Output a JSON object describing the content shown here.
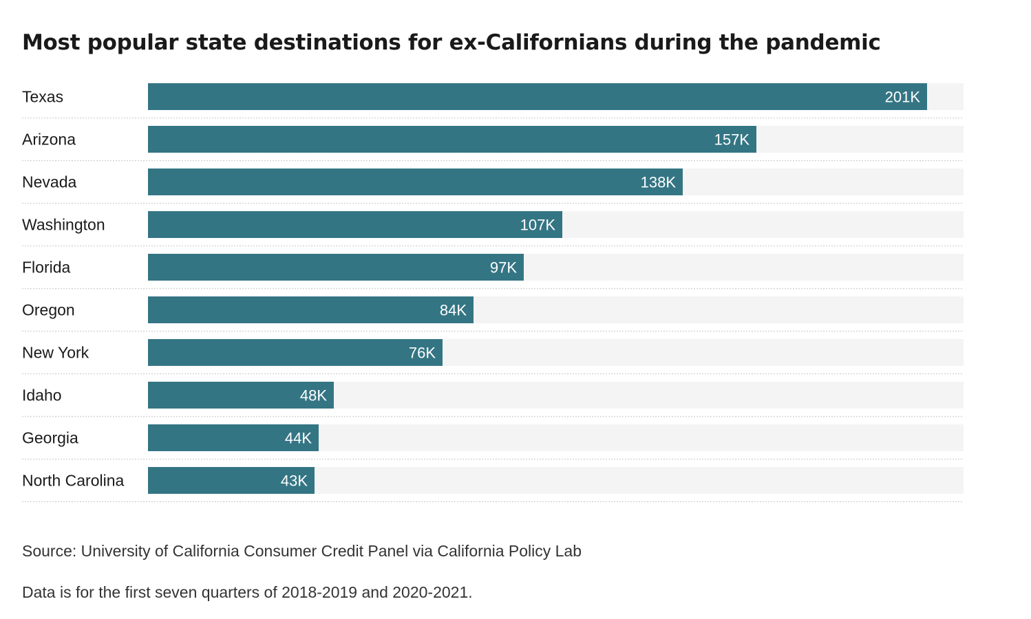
{
  "title": "Most popular state destinations for ex-Californians during the pandemic",
  "source": "Source: University of California Consumer Credit Panel via California Policy Lab",
  "note": "Data is for the first seven quarters of 2018-2019 and 2020-2021.",
  "colors": {
    "bar": "#347584",
    "track": "#f4f4f4",
    "divider": "#cfcfcf"
  },
  "chart_data": {
    "type": "bar",
    "orientation": "horizontal",
    "title": "Most popular state destinations for ex-Californians during the pandemic",
    "categories": [
      "Texas",
      "Arizona",
      "Nevada",
      "Washington",
      "Florida",
      "Oregon",
      "New York",
      "Idaho",
      "Georgia",
      "North Carolina"
    ],
    "values": [
      201000,
      157000,
      138000,
      107000,
      97000,
      84000,
      76000,
      48000,
      44000,
      43000
    ],
    "value_labels": [
      "201K",
      "157K",
      "138K",
      "107K",
      "97K",
      "84K",
      "76K",
      "48K",
      "44K",
      "43K"
    ],
    "xlim": [
      0,
      210500
    ],
    "grid": false,
    "legend": "none"
  }
}
